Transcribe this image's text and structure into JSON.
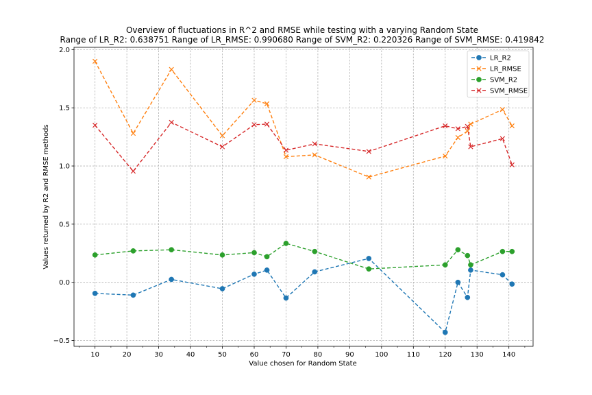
{
  "chart_data": {
    "type": "line",
    "title": "Overview of fluctuations in R^2 and RMSE while testing with a varying Random State",
    "subtitle": "Range of LR_R2: 0.638751 Range of LR_RMSE: 0.990680 Range of SVM_R2: 0.220326 Range of SVM_RMSE: 0.419842",
    "xlabel": "Value chosen for Random State",
    "ylabel": "Values returned by R2 and RMSE methods",
    "xlim": [
      3.4,
      147.6
    ],
    "ylim": [
      -0.55,
      2.02
    ],
    "x_ticks": [
      10,
      20,
      30,
      40,
      50,
      60,
      70,
      80,
      90,
      100,
      110,
      120,
      130,
      140
    ],
    "x_tick_labels": [
      "10",
      "20",
      "30",
      "40",
      "50",
      "60",
      "70",
      "80",
      "90",
      "100",
      "110",
      "120",
      "130",
      "140"
    ],
    "y_ticks": [
      -0.5,
      0.0,
      0.5,
      1.0,
      1.5,
      2.0
    ],
    "y_tick_labels": [
      "−0.5",
      "0.0",
      "0.5",
      "1.0",
      "1.5",
      "2.0"
    ],
    "grid": true,
    "legend_position": "top-right",
    "x": [
      10,
      22,
      34,
      50,
      60,
      64,
      70,
      79,
      96,
      120,
      124,
      127,
      128,
      138,
      141
    ],
    "series": [
      {
        "name": "LR_R2",
        "color": "#1f77b4",
        "marker": "circle",
        "values": [
          -0.095,
          -0.11,
          0.025,
          -0.055,
          0.07,
          0.105,
          -0.135,
          0.09,
          0.205,
          -0.43,
          0.0,
          -0.13,
          0.105,
          0.065,
          -0.015
        ]
      },
      {
        "name": "LR_RMSE",
        "color": "#ff7f0e",
        "marker": "x",
        "values": [
          1.9,
          1.28,
          1.83,
          1.26,
          1.565,
          1.535,
          1.08,
          1.095,
          0.905,
          1.085,
          1.245,
          1.3,
          1.36,
          1.485,
          1.345
        ]
      },
      {
        "name": "SVM_R2",
        "color": "#2ca02c",
        "marker": "circle",
        "values": [
          0.235,
          0.27,
          0.28,
          0.235,
          0.255,
          0.22,
          0.335,
          0.265,
          0.115,
          0.15,
          0.28,
          0.23,
          0.15,
          0.265,
          0.265
        ]
      },
      {
        "name": "SVM_RMSE",
        "color": "#d62728",
        "marker": "x",
        "values": [
          1.35,
          0.955,
          1.375,
          1.165,
          1.355,
          1.36,
          1.135,
          1.19,
          1.125,
          1.345,
          1.32,
          1.34,
          1.165,
          1.235,
          1.01
        ]
      }
    ]
  }
}
